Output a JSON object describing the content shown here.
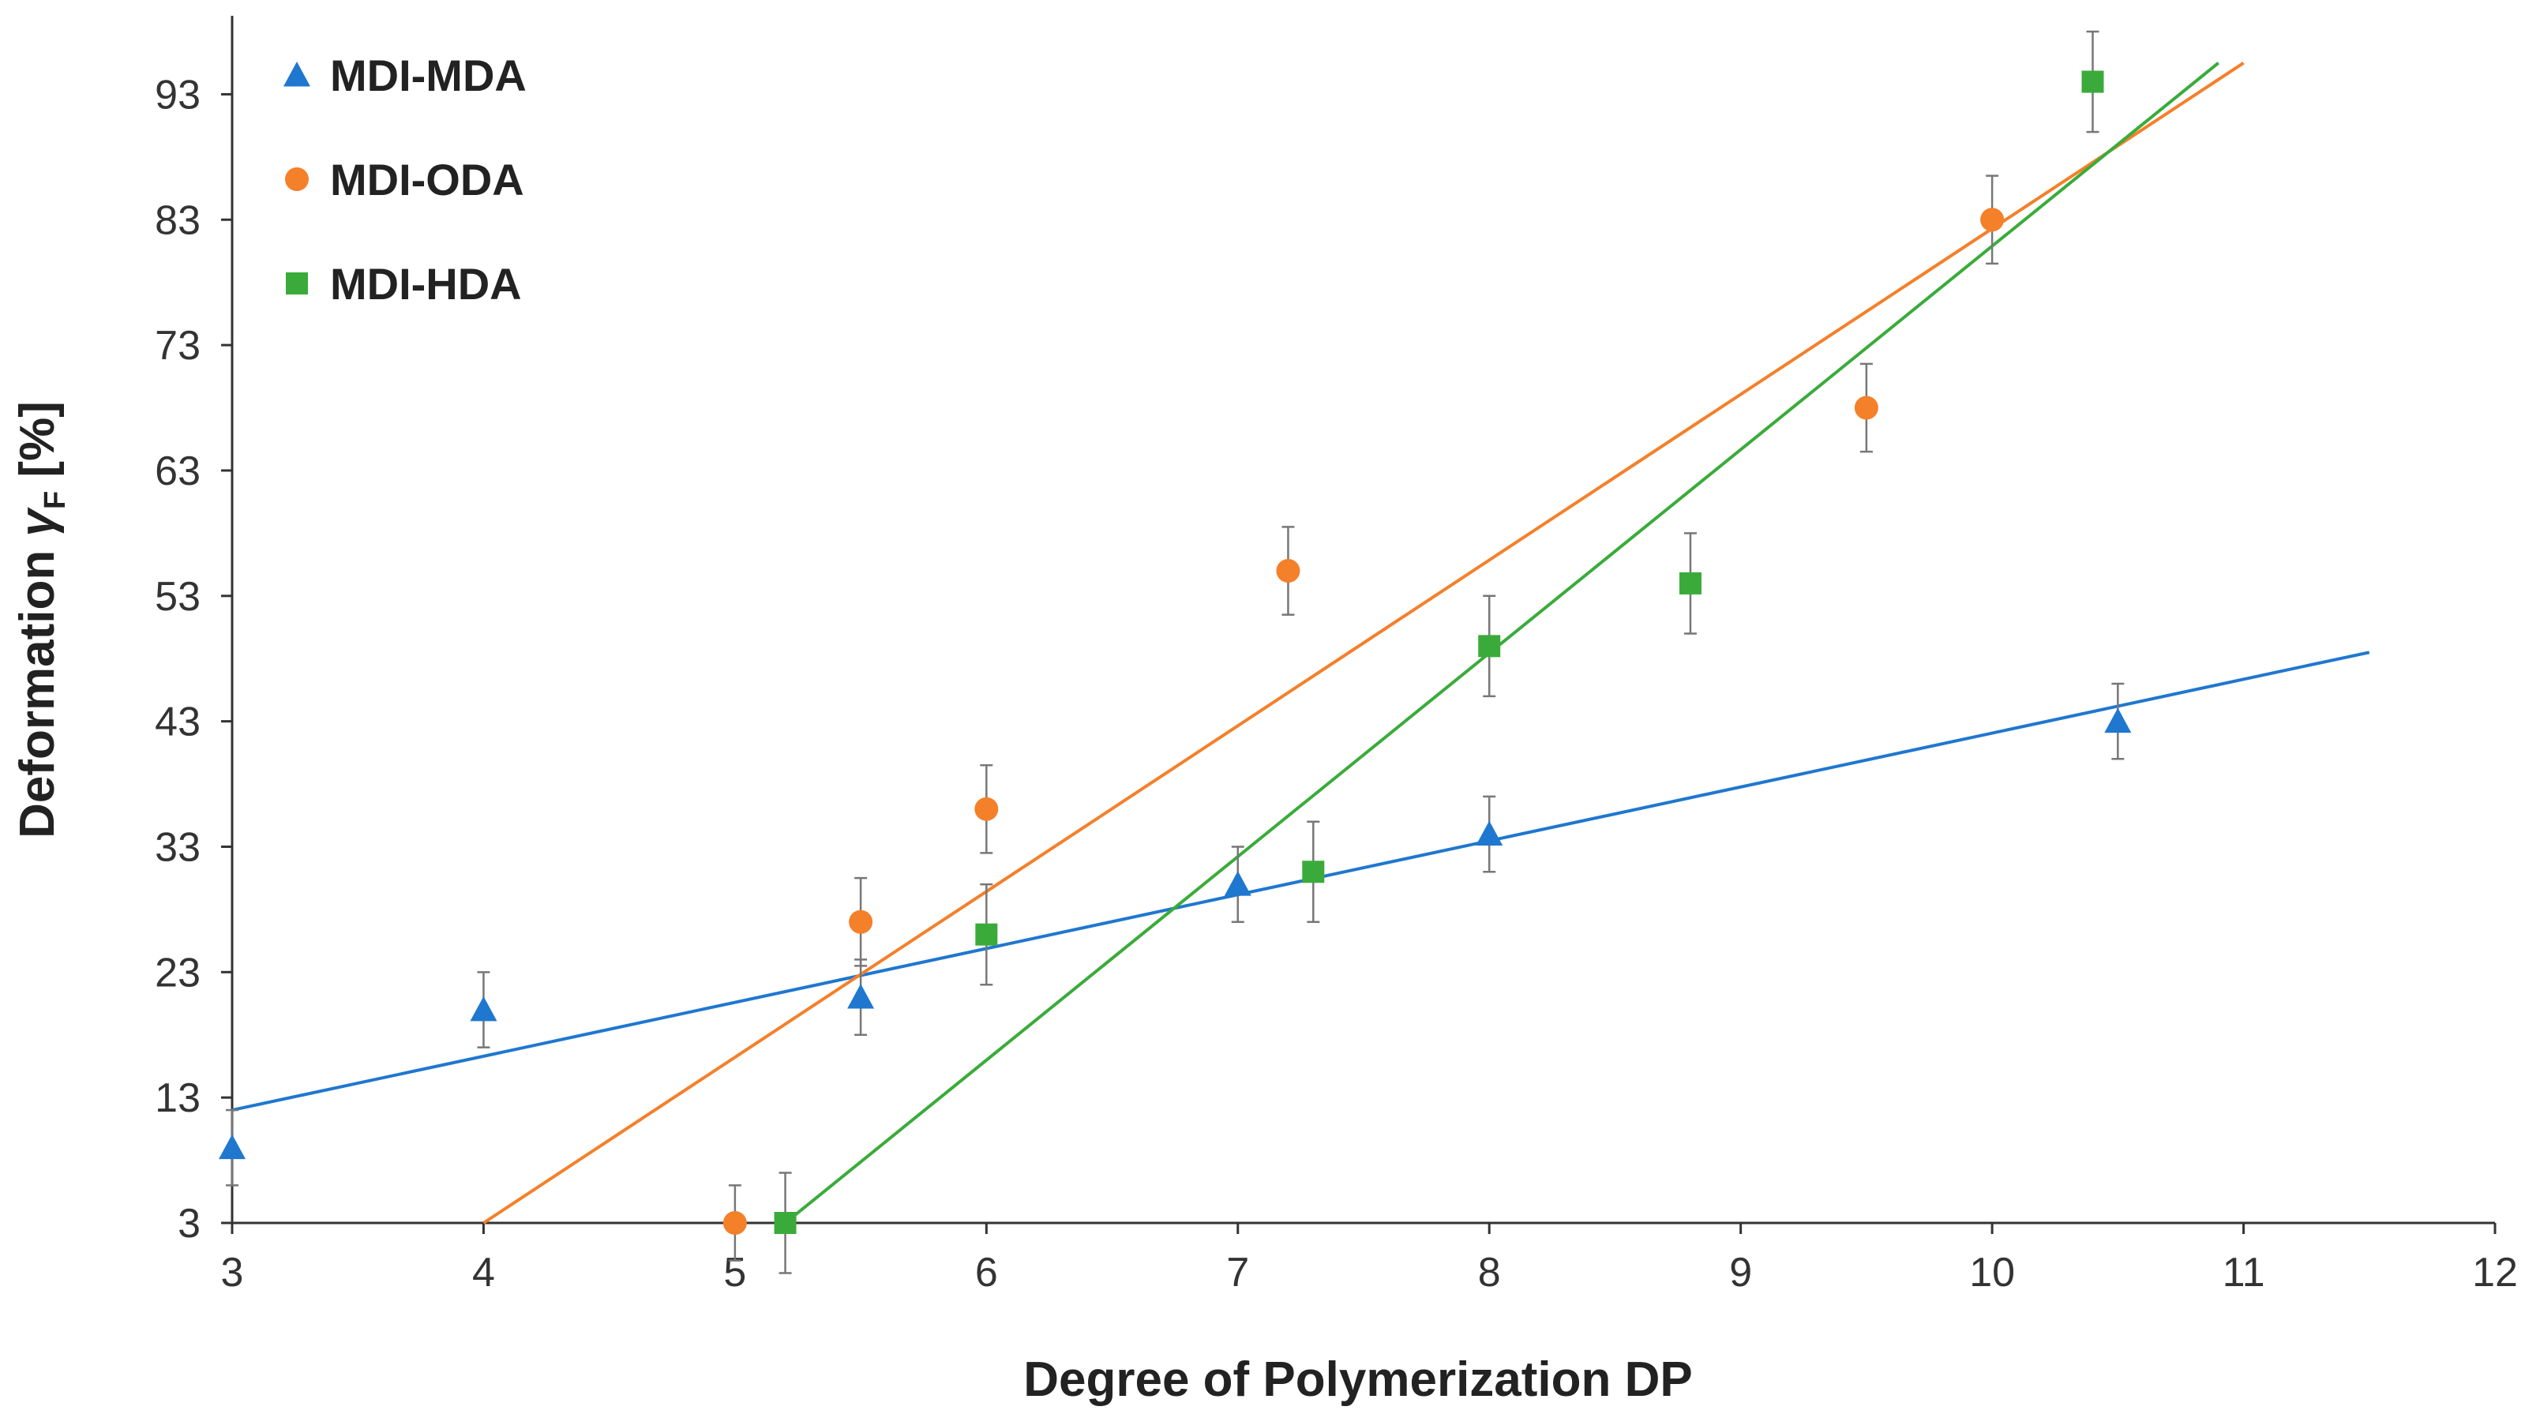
{
  "chart_data": {
    "type": "scatter",
    "title": "",
    "xlabel": "Degree of Polymerization DP",
    "ylabel": "Deformation γF [%]",
    "ylabel_parts": {
      "prefix": "Deformation ",
      "symbol": "γ",
      "subscript": "F",
      "suffix": " [%]"
    },
    "xlim": [
      3,
      12
    ],
    "ylim": [
      3,
      98
    ],
    "x_ticks": [
      3,
      4,
      5,
      6,
      7,
      8,
      9,
      10,
      11,
      12
    ],
    "y_ticks": [
      3,
      13,
      23,
      33,
      43,
      53,
      63,
      73,
      83,
      93
    ],
    "grid": false,
    "legend_position": "top-left",
    "series": [
      {
        "name": "MDI-MDA",
        "color": "#1f77d0",
        "marker": "triangle",
        "points": [
          {
            "x": 3.0,
            "y": 9.0,
            "err": 3.0
          },
          {
            "x": 4.0,
            "y": 20.0,
            "err": 3.0
          },
          {
            "x": 5.5,
            "y": 21.0,
            "err": 3.0
          },
          {
            "x": 7.0,
            "y": 30.0,
            "err": 3.0
          },
          {
            "x": 8.0,
            "y": 34.0,
            "err": 3.0
          },
          {
            "x": 10.5,
            "y": 43.0,
            "err": 3.0
          }
        ],
        "trendline": {
          "x": [
            3.0,
            11.5
          ],
          "y": [
            12.0,
            48.5
          ]
        }
      },
      {
        "name": "MDI-ODA",
        "color": "#f4802a",
        "marker": "circle",
        "points": [
          {
            "x": 5.0,
            "y": 3.0,
            "err": 3.0
          },
          {
            "x": 5.5,
            "y": 27.0,
            "err": 3.5
          },
          {
            "x": 6.0,
            "y": 36.0,
            "err": 3.5
          },
          {
            "x": 7.2,
            "y": 55.0,
            "err": 3.5
          },
          {
            "x": 9.5,
            "y": 68.0,
            "err": 3.5
          },
          {
            "x": 10.0,
            "y": 83.0,
            "err": 3.5
          }
        ],
        "trendline": {
          "x": [
            4.0,
            11.0
          ],
          "y": [
            3.0,
            95.5
          ]
        }
      },
      {
        "name": "MDI-HDA",
        "color": "#3aab3a",
        "marker": "square",
        "points": [
          {
            "x": 5.2,
            "y": 3.0,
            "err": 4.0
          },
          {
            "x": 6.0,
            "y": 26.0,
            "err": 4.0
          },
          {
            "x": 7.3,
            "y": 31.0,
            "err": 4.0
          },
          {
            "x": 8.0,
            "y": 49.0,
            "err": 4.0
          },
          {
            "x": 8.8,
            "y": 54.0,
            "err": 4.0
          },
          {
            "x": 10.4,
            "y": 94.0,
            "err": 4.0
          }
        ],
        "trendline": {
          "x": [
            5.2,
            10.9
          ],
          "y": [
            3.0,
            95.5
          ]
        }
      }
    ]
  }
}
